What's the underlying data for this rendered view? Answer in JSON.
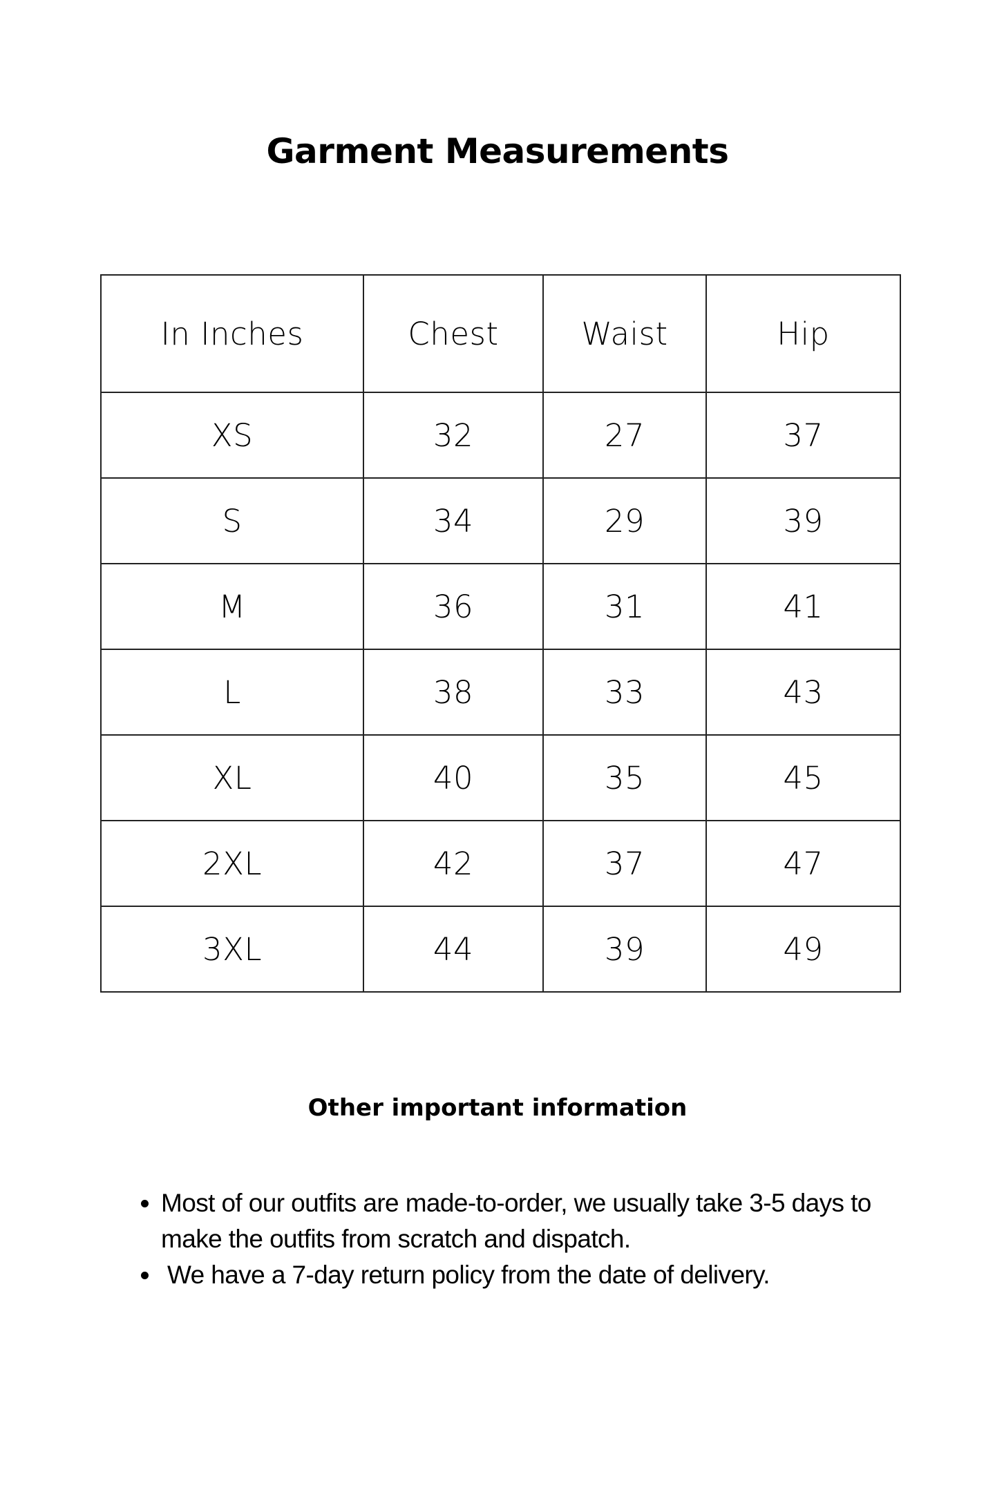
{
  "title": "Garment Measurements",
  "table": {
    "headers": [
      "In Inches",
      "Chest",
      "Waist",
      "Hip"
    ],
    "rows": [
      [
        "XS",
        "32",
        "27",
        "37"
      ],
      [
        "S",
        "34",
        "29",
        "39"
      ],
      [
        "M",
        "36",
        "31",
        "41"
      ],
      [
        "L",
        "38",
        "33",
        "43"
      ],
      [
        "XL",
        "40",
        "35",
        "45"
      ],
      [
        "2XL",
        "42",
        "37",
        "47"
      ],
      [
        "3XL",
        "44",
        "39",
        "49"
      ]
    ]
  },
  "info": {
    "heading": "Other important information",
    "bullets": [
      "Most of our outfits are made-to-order, we usually take 3-5 days to make the outfits from scratch and dispatch.",
      "We have a 7-day return policy from the date of delivery."
    ]
  }
}
